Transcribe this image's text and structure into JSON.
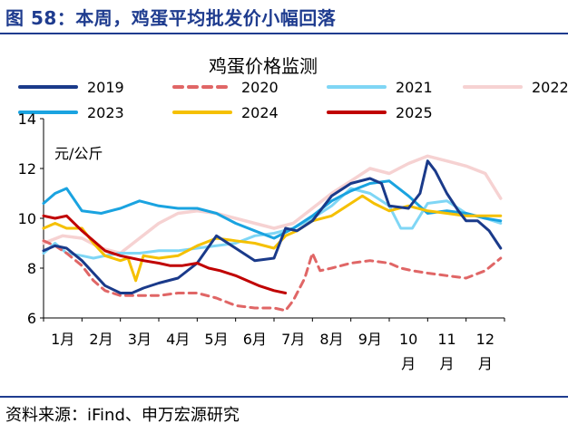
{
  "header": {
    "title": "图 58：本周，鸡蛋平均批发价小幅回落"
  },
  "footer": {
    "source": "资料来源：iFind、申万宏源研究"
  },
  "colors": {
    "2019": "#1a3a8a",
    "2020": "#e06666",
    "2021": "#7fd6f5",
    "2022": "#f6d2d2",
    "2023": "#1aa3e0",
    "2024": "#f5c000",
    "2025": "#c00000"
  },
  "chart_data": {
    "type": "line",
    "title": "鸡蛋价格监测",
    "unit_label": "元/公斤",
    "xlabel": "",
    "ylabel": "",
    "ylim": [
      6,
      14
    ],
    "yticks": [
      "6",
      "8",
      "10",
      "12",
      "14"
    ],
    "xlim": [
      1,
      13
    ],
    "x_tick_labels": [
      "1月",
      "2月",
      "3月",
      "4月",
      "5月",
      "6月",
      "7月",
      "8月",
      "9月",
      "10月",
      "11月",
      "12月"
    ],
    "legend_position": "top",
    "series": [
      {
        "name": "2019",
        "style": "solid",
        "x": [
          1.0,
          1.3,
          1.6,
          2.0,
          2.3,
          2.6,
          3.0,
          3.3,
          3.6,
          4.0,
          4.5,
          5.0,
          5.5,
          6.0,
          6.5,
          7.0,
          7.3,
          7.6,
          8.0,
          8.5,
          9.0,
          9.5,
          9.8,
          10.0,
          10.5,
          10.8,
          11.0,
          11.2,
          11.5,
          11.8,
          12.0,
          12.3,
          12.6,
          12.9
        ],
        "y": [
          8.7,
          8.9,
          8.8,
          8.3,
          7.8,
          7.3,
          7.0,
          7.0,
          7.2,
          7.4,
          7.6,
          8.2,
          9.3,
          8.8,
          8.3,
          8.4,
          9.6,
          9.5,
          9.9,
          10.9,
          11.4,
          11.6,
          11.4,
          10.5,
          10.4,
          11.0,
          12.3,
          11.9,
          11.0,
          10.3,
          9.9,
          9.9,
          9.5,
          8.8
        ]
      },
      {
        "name": "2020",
        "style": "dashed",
        "x": [
          1.0,
          1.3,
          1.6,
          2.0,
          2.3,
          2.6,
          3.0,
          3.5,
          4.0,
          4.5,
          5.0,
          5.5,
          6.0,
          6.5,
          7.0,
          7.3,
          7.5,
          7.8,
          8.0,
          8.2,
          8.5,
          9.0,
          9.5,
          10.0,
          10.3,
          10.6,
          11.0,
          11.5,
          12.0,
          12.5,
          12.9
        ],
        "y": [
          9.1,
          8.9,
          8.6,
          8.1,
          7.5,
          7.1,
          6.9,
          6.9,
          6.9,
          7.0,
          7.0,
          6.8,
          6.5,
          6.4,
          6.4,
          6.3,
          6.7,
          7.6,
          8.6,
          7.9,
          8.0,
          8.2,
          8.3,
          8.2,
          8.0,
          7.9,
          7.8,
          7.7,
          7.6,
          7.9,
          8.4
        ]
      },
      {
        "name": "2021",
        "style": "solid",
        "x": [
          1.0,
          1.3,
          1.6,
          2.0,
          2.3,
          2.6,
          3.0,
          3.5,
          4.0,
          4.5,
          5.0,
          5.5,
          6.0,
          6.5,
          7.0,
          7.5,
          8.0,
          8.5,
          9.0,
          9.5,
          10.0,
          10.3,
          10.6,
          11.0,
          11.5,
          12.0,
          12.5,
          12.9
        ],
        "y": [
          8.6,
          9.0,
          8.6,
          8.5,
          8.4,
          8.5,
          8.6,
          8.6,
          8.7,
          8.7,
          8.8,
          8.9,
          9.0,
          9.3,
          9.4,
          9.6,
          10.0,
          10.5,
          11.2,
          11.0,
          10.5,
          9.6,
          9.6,
          10.6,
          10.7,
          10.2,
          10.0,
          9.8
        ]
      },
      {
        "name": "2022",
        "style": "solid",
        "x": [
          1.0,
          1.5,
          2.0,
          2.5,
          3.0,
          3.5,
          4.0,
          4.5,
          5.0,
          5.5,
          6.0,
          6.5,
          7.0,
          7.5,
          8.0,
          8.5,
          9.0,
          9.5,
          10.0,
          10.5,
          11.0,
          11.5,
          12.0,
          12.5,
          12.9
        ],
        "y": [
          9.0,
          9.3,
          9.2,
          8.8,
          8.6,
          9.2,
          9.8,
          10.2,
          10.3,
          10.2,
          10.0,
          9.8,
          9.6,
          9.8,
          10.4,
          11.0,
          11.5,
          12.0,
          11.8,
          12.2,
          12.5,
          12.3,
          12.1,
          11.8,
          10.8
        ]
      },
      {
        "name": "2023",
        "style": "solid",
        "x": [
          1.0,
          1.3,
          1.6,
          2.0,
          2.5,
          3.0,
          3.5,
          4.0,
          4.5,
          5.0,
          5.5,
          6.0,
          6.5,
          7.0,
          7.5,
          8.0,
          8.5,
          9.0,
          9.5,
          10.0,
          10.5,
          11.0,
          11.5,
          12.0,
          12.5,
          12.9
        ],
        "y": [
          10.6,
          11.0,
          11.2,
          10.3,
          10.2,
          10.4,
          10.7,
          10.5,
          10.4,
          10.4,
          10.2,
          9.8,
          9.5,
          9.2,
          9.6,
          10.1,
          10.7,
          11.1,
          11.4,
          11.5,
          10.9,
          10.2,
          10.3,
          10.2,
          10.0,
          9.9
        ]
      },
      {
        "name": "2024",
        "style": "solid",
        "x": [
          1.0,
          1.3,
          1.6,
          2.0,
          2.3,
          2.6,
          3.0,
          3.2,
          3.4,
          3.6,
          4.0,
          4.5,
          5.0,
          5.5,
          6.0,
          6.5,
          7.0,
          7.3,
          7.6,
          8.0,
          8.5,
          9.0,
          9.3,
          9.6,
          10.0,
          10.5,
          11.0,
          11.5,
          12.0,
          12.5,
          12.9
        ],
        "y": [
          9.6,
          9.8,
          9.6,
          9.6,
          9.0,
          8.5,
          8.3,
          8.4,
          7.5,
          8.5,
          8.4,
          8.5,
          8.9,
          9.2,
          9.1,
          9.0,
          8.8,
          9.3,
          9.5,
          9.9,
          10.1,
          10.6,
          10.9,
          10.6,
          10.3,
          10.5,
          10.3,
          10.2,
          10.1,
          10.1,
          10.1
        ]
      },
      {
        "name": "2025",
        "style": "solid",
        "x": [
          1.0,
          1.3,
          1.6,
          2.0,
          2.3,
          2.6,
          3.0,
          3.3,
          3.6,
          4.0,
          4.3,
          4.6,
          5.0,
          5.3,
          5.6,
          6.0,
          6.3,
          6.6,
          7.0,
          7.3
        ],
        "y": [
          10.1,
          10.0,
          10.1,
          9.5,
          9.1,
          8.7,
          8.5,
          8.4,
          8.3,
          8.2,
          8.1,
          8.1,
          8.2,
          8.0,
          7.9,
          7.7,
          7.5,
          7.3,
          7.1,
          7.0
        ]
      }
    ]
  }
}
